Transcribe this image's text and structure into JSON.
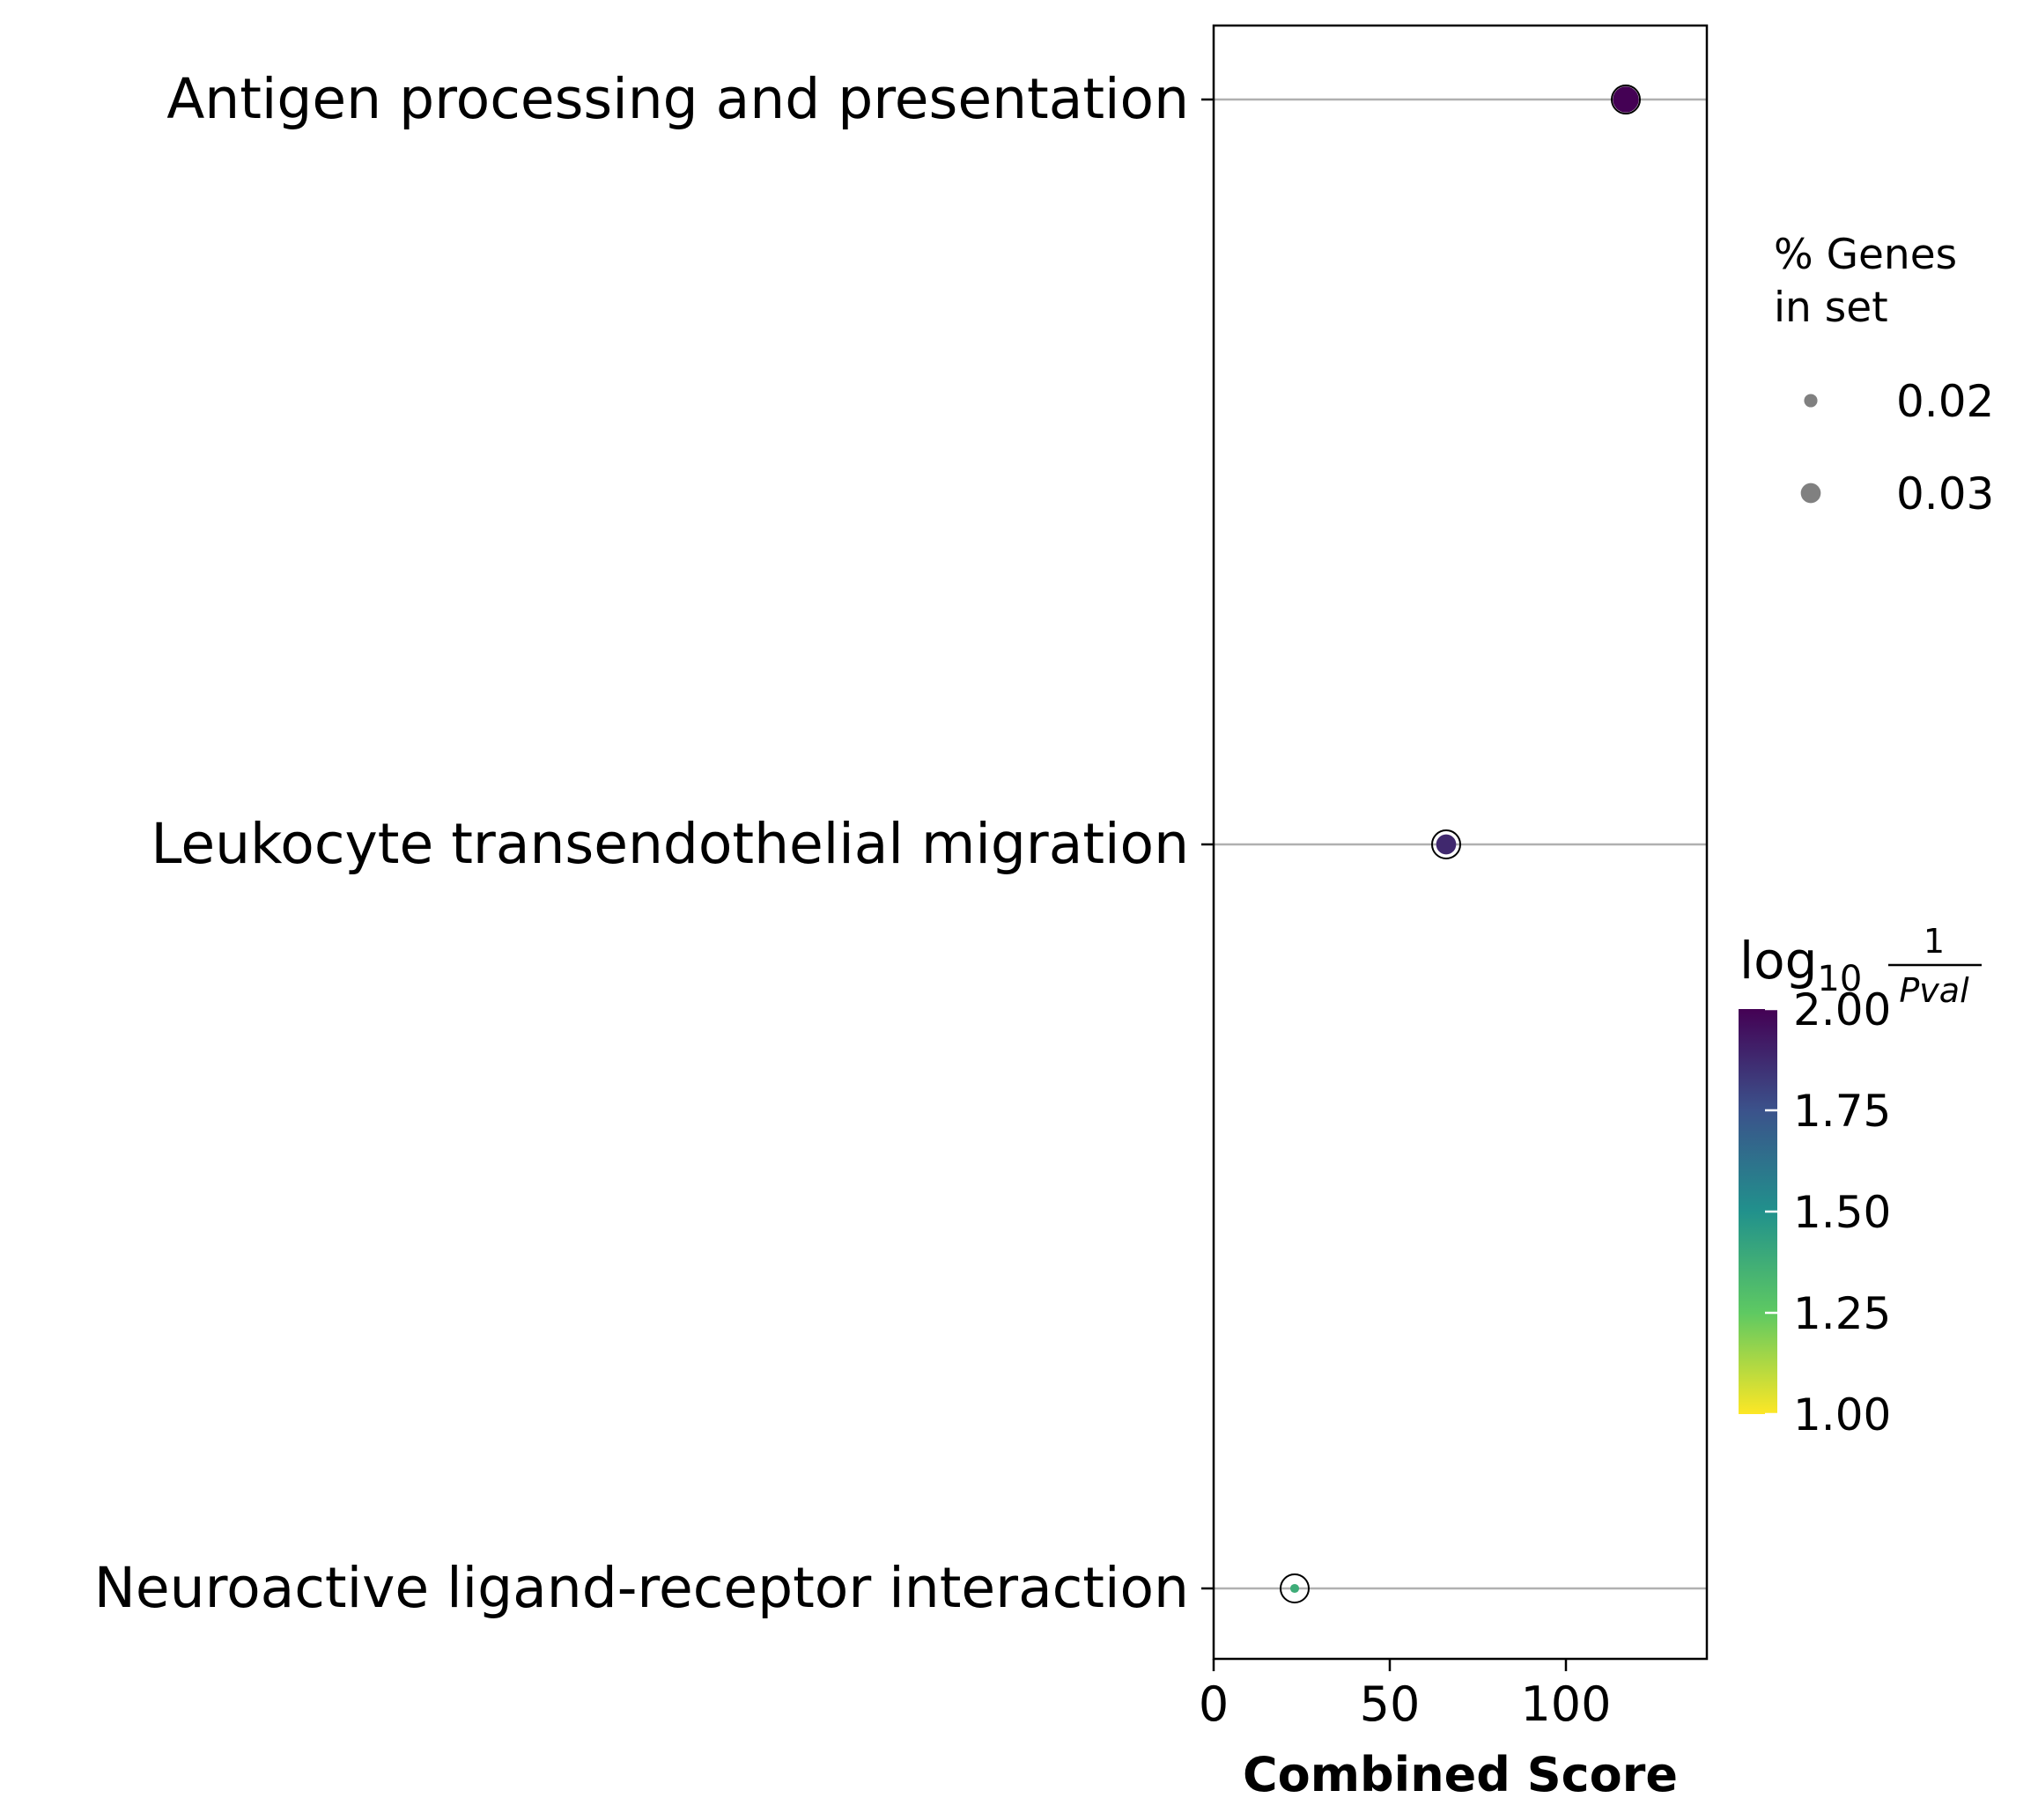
{
  "chart_data": {
    "type": "scatter",
    "xlabel": "Combined Score",
    "xlim": [
      0,
      140
    ],
    "xticks": [
      "0",
      "50",
      "100"
    ],
    "xtick_values": [
      0,
      50,
      100
    ],
    "grid": "horizontal",
    "categories": [
      "Antigen processing and presentation",
      "Leukocyte transendothelial migration",
      "Neuroactive ligand-receptor interaction"
    ],
    "x": [
      117,
      66,
      23
    ],
    "color_value": [
      2.0,
      1.88,
      1.38
    ],
    "size_value": [
      0.035,
      0.027,
      0.012
    ],
    "size_legend": {
      "title": [
        "% Genes",
        "in set"
      ],
      "entries": [
        {
          "label": "0.02",
          "value": 0.02
        },
        {
          "label": "0.03",
          "value": 0.03
        }
      ],
      "placement": "right"
    },
    "colorbar": {
      "title_base": "log",
      "title_sub": "10",
      "title_num": "1",
      "title_den": "Pval",
      "range": [
        1.0,
        2.0
      ],
      "ticks": [
        "2.00",
        "1.75",
        "1.50",
        "1.25",
        "1.00"
      ],
      "tick_values": [
        2.0,
        1.75,
        1.5,
        1.25,
        1.0
      ],
      "colormap": [
        "#fde725",
        "#5ec962",
        "#21918c",
        "#3b528b",
        "#440154"
      ],
      "placement": "right"
    }
  }
}
